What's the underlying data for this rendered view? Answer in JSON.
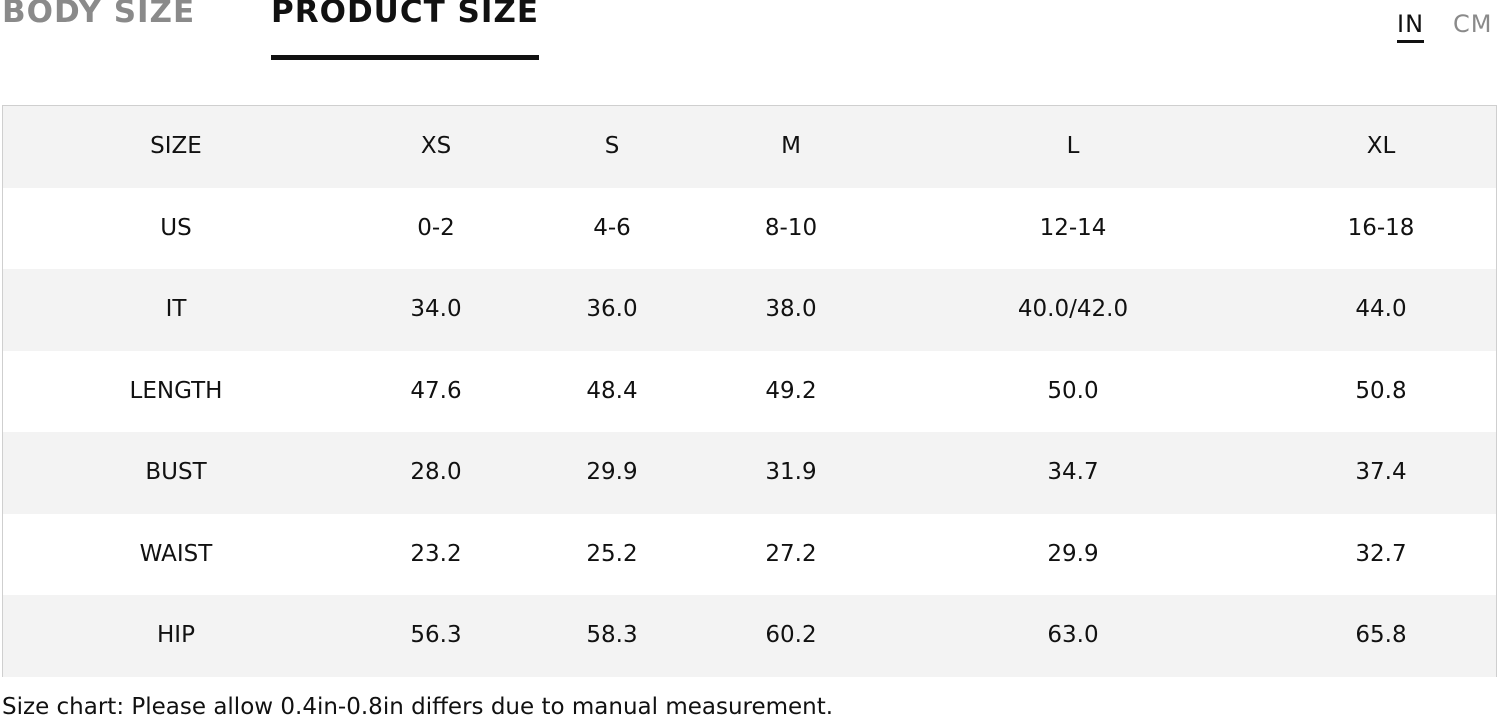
{
  "tabs": [
    "BODY SIZE",
    "PRODUCT SIZE"
  ],
  "active_tab": 1,
  "units": [
    "IN",
    "CM"
  ],
  "active_unit": 0,
  "table": {
    "header": [
      "SIZE",
      "XS",
      "S",
      "M",
      "L",
      "XL"
    ],
    "rows": [
      [
        "US",
        "0-2",
        "4-6",
        "8-10",
        "12-14",
        "16-18"
      ],
      [
        "IT",
        "34.0",
        "36.0",
        "38.0",
        "40.0/42.0",
        "44.0"
      ],
      [
        "LENGTH",
        "47.6",
        "48.4",
        "49.2",
        "50.0",
        "50.8"
      ],
      [
        "BUST",
        "28.0",
        "29.9",
        "31.9",
        "34.7",
        "37.4"
      ],
      [
        "WAIST",
        "23.2",
        "25.2",
        "27.2",
        "29.9",
        "32.7"
      ],
      [
        "HIP",
        "56.3",
        "58.3",
        "60.2",
        "63.0",
        "65.8"
      ]
    ]
  },
  "note": "Size chart: Please allow 0.4in-0.8in differs due to manual measurement."
}
